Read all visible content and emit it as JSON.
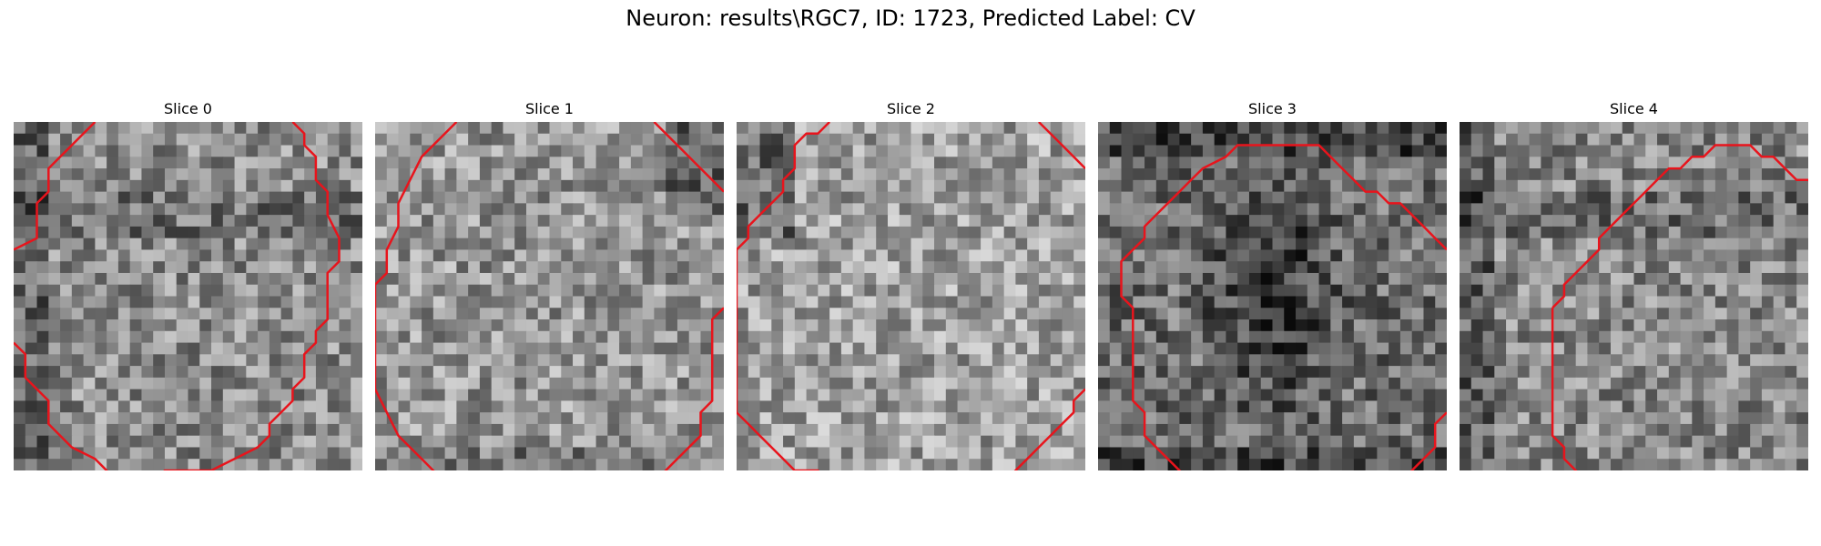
{
  "figure": {
    "title": "Neuron: results\\RGC7, ID: 1723, Predicted Label: CV"
  },
  "colors": {
    "contour": "#e8141c",
    "background": "#ffffff"
  },
  "grid_size": 30,
  "panels": [
    {
      "title": "Slice 0",
      "seed": 11,
      "base_intensity": 140,
      "dark_region": "left-band",
      "contour": [
        [
          7,
          0
        ],
        [
          3,
          4
        ],
        [
          3,
          6
        ],
        [
          2,
          7
        ],
        [
          2,
          10
        ],
        [
          0,
          11
        ]
      ],
      "contour2": [
        [
          24,
          0
        ],
        [
          25,
          1
        ],
        [
          25,
          2
        ],
        [
          26,
          3
        ],
        [
          26,
          5
        ],
        [
          27,
          6
        ],
        [
          27,
          8
        ],
        [
          28,
          10
        ],
        [
          28,
          12
        ],
        [
          27,
          13
        ],
        [
          27,
          17
        ],
        [
          26,
          18
        ],
        [
          26,
          19
        ],
        [
          25,
          20
        ],
        [
          25,
          22
        ],
        [
          24,
          23
        ],
        [
          24,
          24
        ],
        [
          23,
          25
        ],
        [
          22,
          26
        ],
        [
          22,
          27
        ],
        [
          21,
          28
        ],
        [
          19,
          29
        ],
        [
          17,
          30
        ],
        [
          13,
          30
        ],
        [
          12,
          31
        ],
        [
          9,
          31
        ],
        [
          8,
          30
        ],
        [
          7,
          29
        ],
        [
          5,
          28
        ],
        [
          4,
          27
        ],
        [
          3,
          26
        ],
        [
          3,
          24
        ],
        [
          2,
          23
        ],
        [
          1,
          22
        ],
        [
          1,
          20
        ],
        [
          0,
          19
        ]
      ]
    },
    {
      "title": "Slice 1",
      "seed": 23,
      "base_intensity": 150,
      "dark_region": "top-right",
      "contour": [
        [
          7,
          0
        ],
        [
          4,
          3
        ],
        [
          3,
          5
        ],
        [
          2,
          7
        ],
        [
          2,
          9
        ],
        [
          1,
          11
        ],
        [
          1,
          13
        ],
        [
          0,
          14
        ]
      ],
      "contour2": [
        [
          0,
          14
        ],
        [
          0,
          23
        ],
        [
          1,
          25
        ],
        [
          2,
          27
        ],
        [
          3,
          28
        ],
        [
          4,
          29
        ],
        [
          5,
          30
        ],
        [
          6,
          31
        ]
      ],
      "contour3": [
        [
          24,
          0
        ],
        [
          27,
          3
        ],
        [
          29,
          5
        ],
        [
          30,
          6
        ]
      ],
      "contour4": [
        [
          30,
          16
        ],
        [
          29,
          17
        ],
        [
          29,
          24
        ],
        [
          28,
          25
        ],
        [
          28,
          27
        ],
        [
          27,
          28
        ],
        [
          26,
          29
        ],
        [
          25,
          30
        ],
        [
          24,
          31
        ],
        [
          23,
          31
        ]
      ]
    },
    {
      "title": "Slice 2",
      "seed": 37,
      "base_intensity": 160,
      "dark_region": "top-left",
      "contour": [
        [
          8,
          0
        ],
        [
          7,
          1
        ],
        [
          6,
          1
        ],
        [
          5,
          2
        ],
        [
          5,
          4
        ],
        [
          4,
          5
        ],
        [
          4,
          6
        ],
        [
          3,
          7
        ],
        [
          2,
          8
        ],
        [
          1,
          9
        ],
        [
          1,
          10
        ],
        [
          0,
          11
        ],
        [
          0,
          25
        ],
        [
          1,
          26
        ],
        [
          2,
          27
        ],
        [
          3,
          28
        ],
        [
          4,
          29
        ],
        [
          5,
          30
        ],
        [
          7,
          30
        ],
        [
          8,
          31
        ]
      ],
      "contour2": [
        [
          26,
          0
        ],
        [
          28,
          2
        ],
        [
          29,
          3
        ],
        [
          30,
          4
        ]
      ],
      "contour3": [
        [
          30,
          23
        ],
        [
          29,
          24
        ],
        [
          29,
          25
        ],
        [
          28,
          26
        ],
        [
          27,
          27
        ],
        [
          26,
          28
        ],
        [
          25,
          29
        ],
        [
          24,
          30
        ],
        [
          23,
          31
        ]
      ]
    },
    {
      "title": "Slice 3",
      "seed": 41,
      "base_intensity": 110,
      "dark_region": "center",
      "contour": [
        [
          13,
          2
        ],
        [
          12,
          2
        ],
        [
          11,
          3
        ],
        [
          9,
          4
        ],
        [
          8,
          5
        ],
        [
          7,
          6
        ],
        [
          6,
          7
        ],
        [
          5,
          8
        ],
        [
          4,
          9
        ],
        [
          4,
          10
        ],
        [
          3,
          11
        ],
        [
          2,
          12
        ],
        [
          2,
          15
        ],
        [
          3,
          16
        ],
        [
          3,
          24
        ],
        [
          4,
          25
        ],
        [
          4,
          27
        ],
        [
          5,
          28
        ],
        [
          6,
          29
        ],
        [
          7,
          30
        ],
        [
          8,
          31
        ]
      ],
      "contour2": [
        [
          13,
          2
        ],
        [
          19,
          2
        ],
        [
          20,
          3
        ],
        [
          21,
          4
        ],
        [
          22,
          5
        ],
        [
          23,
          6
        ],
        [
          24,
          6
        ],
        [
          25,
          7
        ],
        [
          26,
          7
        ],
        [
          27,
          8
        ],
        [
          28,
          9
        ],
        [
          29,
          10
        ],
        [
          30,
          11
        ]
      ],
      "contour3": [
        [
          30,
          25
        ],
        [
          29,
          26
        ],
        [
          29,
          28
        ],
        [
          28,
          29
        ],
        [
          27,
          30
        ],
        [
          26,
          31
        ]
      ]
    },
    {
      "title": "Slice 4",
      "seed": 59,
      "base_intensity": 135,
      "dark_region": "left-band",
      "contour": [
        [
          8,
          16
        ],
        [
          8,
          24
        ],
        [
          8,
          27
        ],
        [
          9,
          28
        ],
        [
          9,
          29
        ],
        [
          10,
          30
        ],
        [
          11,
          31
        ]
      ],
      "contour2": [
        [
          8,
          16
        ],
        [
          9,
          15
        ],
        [
          9,
          14
        ],
        [
          10,
          13
        ],
        [
          11,
          12
        ],
        [
          12,
          11
        ],
        [
          12,
          10
        ],
        [
          13,
          9
        ],
        [
          14,
          8
        ],
        [
          15,
          7
        ],
        [
          16,
          6
        ],
        [
          17,
          5
        ],
        [
          18,
          4
        ],
        [
          19,
          4
        ],
        [
          20,
          3
        ],
        [
          21,
          3
        ],
        [
          22,
          2
        ],
        [
          25,
          2
        ],
        [
          26,
          3
        ],
        [
          27,
          3
        ],
        [
          28,
          4
        ],
        [
          29,
          5
        ],
        [
          30,
          5
        ],
        [
          31,
          6
        ]
      ]
    }
  ]
}
